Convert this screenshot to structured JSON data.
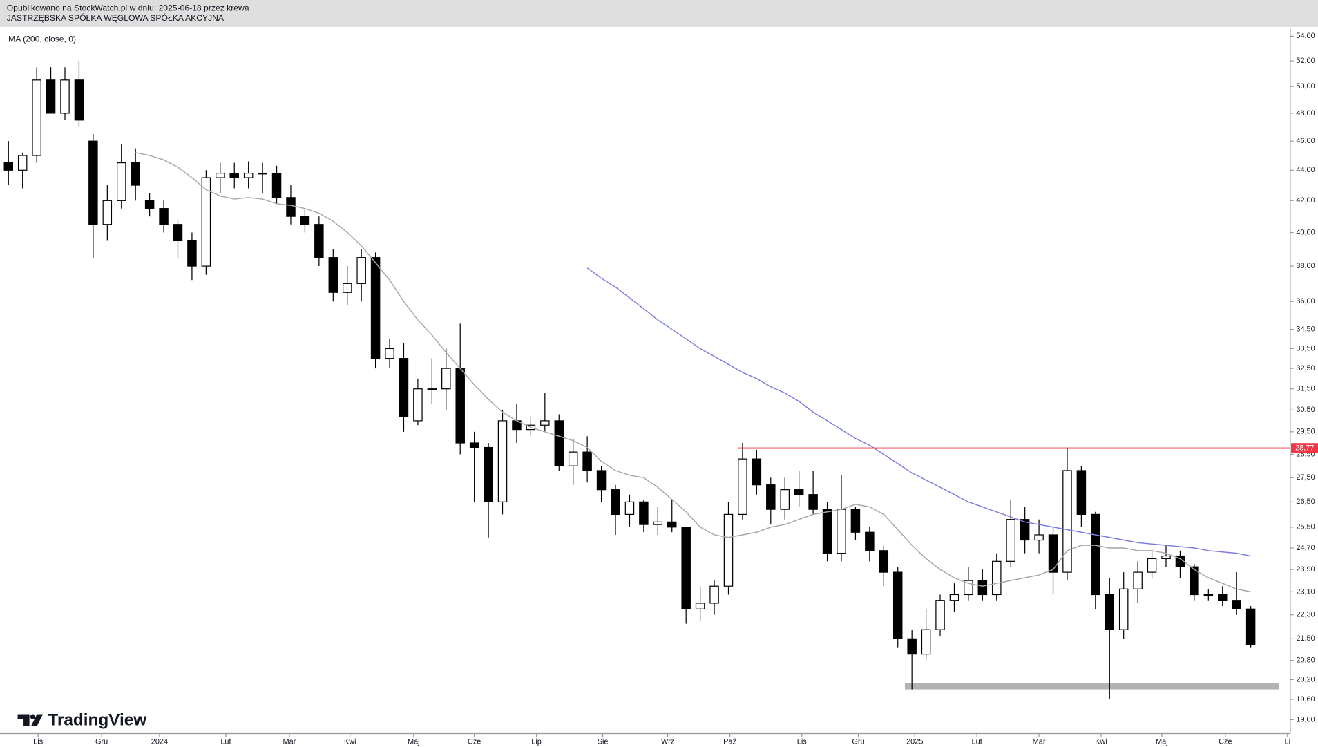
{
  "header": {
    "published": "Opublikowano na StockWatch.pl w dniu: 2025-06-18 przez krewa",
    "company": "JASTRZĘBSKA SPÓŁKA WĘGLOWA SPÓŁKA AKCYJNA"
  },
  "branding": "TradingView",
  "chart_data": {
    "type": "candlestick",
    "log_scale": true,
    "grid": false,
    "up_color": "#ffffff",
    "down_color": "#000000",
    "x": [
      1,
      2,
      3,
      4,
      5,
      6,
      7,
      8,
      9,
      10,
      11,
      12,
      13,
      14,
      15,
      16,
      17,
      18,
      19,
      20,
      21,
      22,
      23,
      24,
      25,
      26,
      27,
      28,
      29,
      30,
      31,
      32,
      33,
      34,
      35,
      36,
      37,
      38,
      39,
      40,
      41,
      42,
      43,
      44,
      45,
      46,
      47,
      48,
      49,
      50,
      51,
      52,
      53,
      54,
      55,
      56,
      57,
      58,
      59,
      60,
      61,
      62,
      63,
      64,
      65,
      66,
      67,
      68,
      69,
      70,
      71,
      72,
      73,
      74,
      75,
      76,
      77,
      78,
      79,
      80,
      81,
      82,
      83,
      84,
      85,
      86,
      87,
      88,
      89
    ],
    "open": [
      44.5,
      44,
      45,
      50.5,
      48,
      50.5,
      46,
      40.5,
      42,
      44.5,
      42,
      41.5,
      40.5,
      39.5,
      38,
      43.5,
      43.8,
      43.5,
      43.8,
      43.8,
      42.2,
      41,
      40.5,
      38.5,
      36.5,
      37,
      38.5,
      33,
      33,
      30,
      31.5,
      31.5,
      32.5,
      29,
      28.8,
      26.5,
      30,
      29.6,
      29.8,
      30,
      28,
      28.6,
      27.8,
      27,
      26,
      26.5,
      25.6,
      25.7,
      25.5,
      22.5,
      22.7,
      23.3,
      26,
      28.3,
      27.2,
      26.2,
      27,
      26.8,
      26.2,
      24.5,
      26.2,
      25.3,
      24.6,
      23.8,
      21.5,
      21,
      21.8,
      22.8,
      23,
      23.5,
      23,
      24.2,
      25.8,
      25,
      25.2,
      23.8,
      27.8,
      26,
      23,
      21.8,
      23.2,
      23.8,
      24.3,
      24.4,
      24,
      23,
      23,
      22.8,
      22.5
    ],
    "high": [
      46,
      45.2,
      51.5,
      51.5,
      51.5,
      52,
      46.5,
      43,
      45.8,
      45.5,
      42.5,
      42,
      40.8,
      40,
      44,
      44.5,
      44.5,
      44.6,
      44.5,
      44.3,
      43,
      41.5,
      41,
      39,
      38,
      39,
      38.8,
      34,
      33.8,
      32,
      33,
      33.5,
      34.8,
      29.5,
      29,
      30.5,
      30.8,
      30.2,
      31.3,
      30.3,
      29.2,
      29.3,
      28,
      27.2,
      26.8,
      26.6,
      26.3,
      26.6,
      25.5,
      23.3,
      23.5,
      26.5,
      29,
      28.7,
      27.5,
      27.5,
      27.8,
      27.8,
      26.5,
      27.6,
      26.3,
      25.5,
      24.8,
      24,
      21.8,
      22.5,
      23,
      23.4,
      24,
      23.9,
      24.5,
      26.6,
      26.3,
      25.8,
      25.5,
      28.8,
      28,
      26.1,
      23.6,
      23.8,
      24.2,
      24.6,
      24.8,
      24.6,
      24.1,
      23.2,
      23.3,
      23.8,
      22.6
    ],
    "low": [
      43,
      42.8,
      44.5,
      48,
      47.5,
      47,
      38.5,
      39.5,
      41.5,
      42,
      41,
      40,
      38.5,
      37.2,
      37.5,
      42.5,
      42.8,
      42.8,
      42.5,
      41.8,
      40.5,
      40,
      38,
      36,
      35.8,
      36,
      32.5,
      32.5,
      29.5,
      29.8,
      30.8,
      30.5,
      28.5,
      26.5,
      25.1,
      26,
      29,
      29.3,
      29.5,
      27.8,
      27.2,
      27.3,
      26.5,
      25.2,
      25.5,
      25.3,
      25.2,
      25.3,
      22,
      22.1,
      22.3,
      23,
      25.8,
      26.8,
      25.6,
      25.8,
      26.3,
      26,
      24.2,
      24.2,
      25,
      24.2,
      23.3,
      21.2,
      19.9,
      20.8,
      21.6,
      22.4,
      22.8,
      22.8,
      22.8,
      24,
      24.5,
      24.5,
      23,
      23.5,
      25.5,
      22.5,
      19.6,
      21.5,
      22.7,
      23.6,
      24,
      23.6,
      22.8,
      22.8,
      22.6,
      22.3,
      21.2
    ],
    "close": [
      44,
      45,
      50.5,
      48,
      50.5,
      47.5,
      40.5,
      42,
      44.5,
      43,
      41.5,
      40.5,
      39.5,
      38,
      43.5,
      43.8,
      43.5,
      43.8,
      43.8,
      42.2,
      41,
      40.5,
      38.5,
      36.5,
      37,
      38.5,
      33,
      33.5,
      30.2,
      31.5,
      31.5,
      32.5,
      29,
      28.8,
      26.5,
      30,
      29.6,
      29.8,
      30,
      28,
      28.6,
      27.8,
      27,
      26,
      26.5,
      25.6,
      25.7,
      25.5,
      22.5,
      22.7,
      23.3,
      26,
      28.3,
      27.2,
      26.2,
      27,
      26.8,
      26.2,
      24.5,
      26.2,
      25.3,
      24.6,
      23.8,
      21.5,
      21,
      21.8,
      22.8,
      23,
      23.5,
      23,
      24.2,
      25.8,
      25,
      25.2,
      23.8,
      27.8,
      26,
      23,
      21.8,
      23.2,
      23.8,
      24.3,
      24.4,
      24,
      23,
      23,
      22.8,
      22.5,
      21.3
    ],
    "series": [
      {
        "name": "MA (200, close, 0)",
        "color": "#7c7ce0",
        "values": [
          null,
          null,
          null,
          null,
          null,
          null,
          null,
          null,
          null,
          null,
          null,
          null,
          null,
          null,
          null,
          null,
          null,
          null,
          null,
          null,
          null,
          null,
          null,
          null,
          null,
          null,
          null,
          null,
          null,
          null,
          null,
          null,
          null,
          null,
          null,
          null,
          null,
          null,
          null,
          null,
          null,
          37.9,
          37.3,
          36.8,
          36.2,
          35.6,
          35,
          34.5,
          34,
          33.5,
          33.1,
          32.7,
          32.3,
          32,
          31.6,
          31.3,
          30.9,
          30.4,
          30,
          29.6,
          29.2,
          28.9,
          28.5,
          28.1,
          27.7,
          27.4,
          27.1,
          26.8,
          26.5,
          26.3,
          26.1,
          25.9,
          25.7,
          25.6,
          25.5,
          25.4,
          25.3,
          25.2,
          25.1,
          25,
          24.9,
          24.85,
          24.8,
          24.75,
          24.7,
          24.6,
          24.55,
          24.5,
          24.4
        ]
      },
      {
        "color": "#a6a6a6",
        "values": [
          null,
          null,
          null,
          null,
          null,
          null,
          null,
          null,
          null,
          45.2,
          45,
          44.7,
          44.2,
          43.5,
          42.7,
          42.3,
          42.1,
          42.2,
          42.1,
          41.8,
          41.7,
          41.5,
          41.2,
          40.7,
          40,
          39.2,
          38.2,
          37.2,
          36,
          35,
          34.2,
          33.3,
          32.5,
          31.7,
          31,
          30.4,
          30,
          29.7,
          29.5,
          29.3,
          29.1,
          28.8,
          28.2,
          27.8,
          27.6,
          27.5,
          27.1,
          26.6,
          26.1,
          25.5,
          25.2,
          25.1,
          25.2,
          25.3,
          25.5,
          25.6,
          25.8,
          26,
          26.1,
          26.2,
          26.4,
          26.3,
          26,
          25.4,
          24.8,
          24.3,
          23.9,
          23.6,
          23.4,
          23.3,
          23.4,
          23.5,
          23.6,
          23.7,
          23.9,
          24.6,
          24.8,
          24.8,
          24.7,
          24.7,
          24.6,
          24.6,
          24.5,
          24.3,
          23.9,
          23.6,
          23.4,
          23.2,
          23.1
        ]
      }
    ],
    "xlim": [
      0.4,
      91.8
    ],
    "xticks": [
      {
        "value": 3.1,
        "label": "Lis"
      },
      {
        "value": 7.6,
        "label": "Gru"
      },
      {
        "value": 11.7,
        "label": "2024"
      },
      {
        "value": 16.4,
        "label": "Lut"
      },
      {
        "value": 20.9,
        "label": "Mar"
      },
      {
        "value": 25.2,
        "label": "Kwi"
      },
      {
        "value": 29.7,
        "label": "Maj"
      },
      {
        "value": 34,
        "label": "Cze"
      },
      {
        "value": 38.4,
        "label": "Lip"
      },
      {
        "value": 43.1,
        "label": "Sie"
      },
      {
        "value": 47.7,
        "label": "Wrz"
      },
      {
        "value": 52.1,
        "label": "Paź"
      },
      {
        "value": 57.2,
        "label": "Lis"
      },
      {
        "value": 61.2,
        "label": "Gru"
      },
      {
        "value": 65.2,
        "label": "2025"
      },
      {
        "value": 69.6,
        "label": "Lut"
      },
      {
        "value": 74,
        "label": "Mar"
      },
      {
        "value": 78.4,
        "label": "Kwi"
      },
      {
        "value": 82.7,
        "label": "Maj"
      },
      {
        "value": 87.2,
        "label": "Cze"
      },
      {
        "value": 91.6,
        "label": "Li"
      }
    ],
    "ylim": [
      18.6,
      54.7
    ],
    "yticks": [
      {
        "value": 54,
        "label": "54,00"
      },
      {
        "value": 52,
        "label": "52,00"
      },
      {
        "value": 50,
        "label": "50,00"
      },
      {
        "value": 48,
        "label": "48,00"
      },
      {
        "value": 46,
        "label": "46,00"
      },
      {
        "value": 44,
        "label": "44,00"
      },
      {
        "value": 42,
        "label": "42,00"
      },
      {
        "value": 40,
        "label": "40,00"
      },
      {
        "value": 38,
        "label": "38,00"
      },
      {
        "value": 36,
        "label": "36,00"
      },
      {
        "value": 34.5,
        "label": "34,50"
      },
      {
        "value": 33.5,
        "label": "33,50"
      },
      {
        "value": 32.5,
        "label": "32,50"
      },
      {
        "value": 31.5,
        "label": "31,50"
      },
      {
        "value": 30.5,
        "label": "30,50"
      },
      {
        "value": 29.5,
        "label": "29,50"
      },
      {
        "value": 28.5,
        "label": "28,50"
      },
      {
        "value": 27.5,
        "label": "27,50"
      },
      {
        "value": 26.5,
        "label": "26,50"
      },
      {
        "value": 25.5,
        "label": "25,50"
      },
      {
        "value": 24.7,
        "label": "24,70"
      },
      {
        "value": 23.9,
        "label": "23,90"
      },
      {
        "value": 23.1,
        "label": "23,10"
      },
      {
        "value": 22.3,
        "label": "22,30"
      },
      {
        "value": 21.5,
        "label": "21,50"
      },
      {
        "value": 20.8,
        "label": "20,80"
      },
      {
        "value": 20.2,
        "label": "20,20"
      },
      {
        "value": 19.6,
        "label": "19,60"
      },
      {
        "value": 19,
        "label": "19,00"
      }
    ],
    "hline": {
      "value": 28.77,
      "label": "28,77",
      "x_start": 52.7,
      "color": "#f23645"
    },
    "zone": {
      "x": [
        64.5,
        91
      ],
      "y": [
        19.9,
        20.08
      ],
      "color": "#b2b2b2"
    }
  }
}
